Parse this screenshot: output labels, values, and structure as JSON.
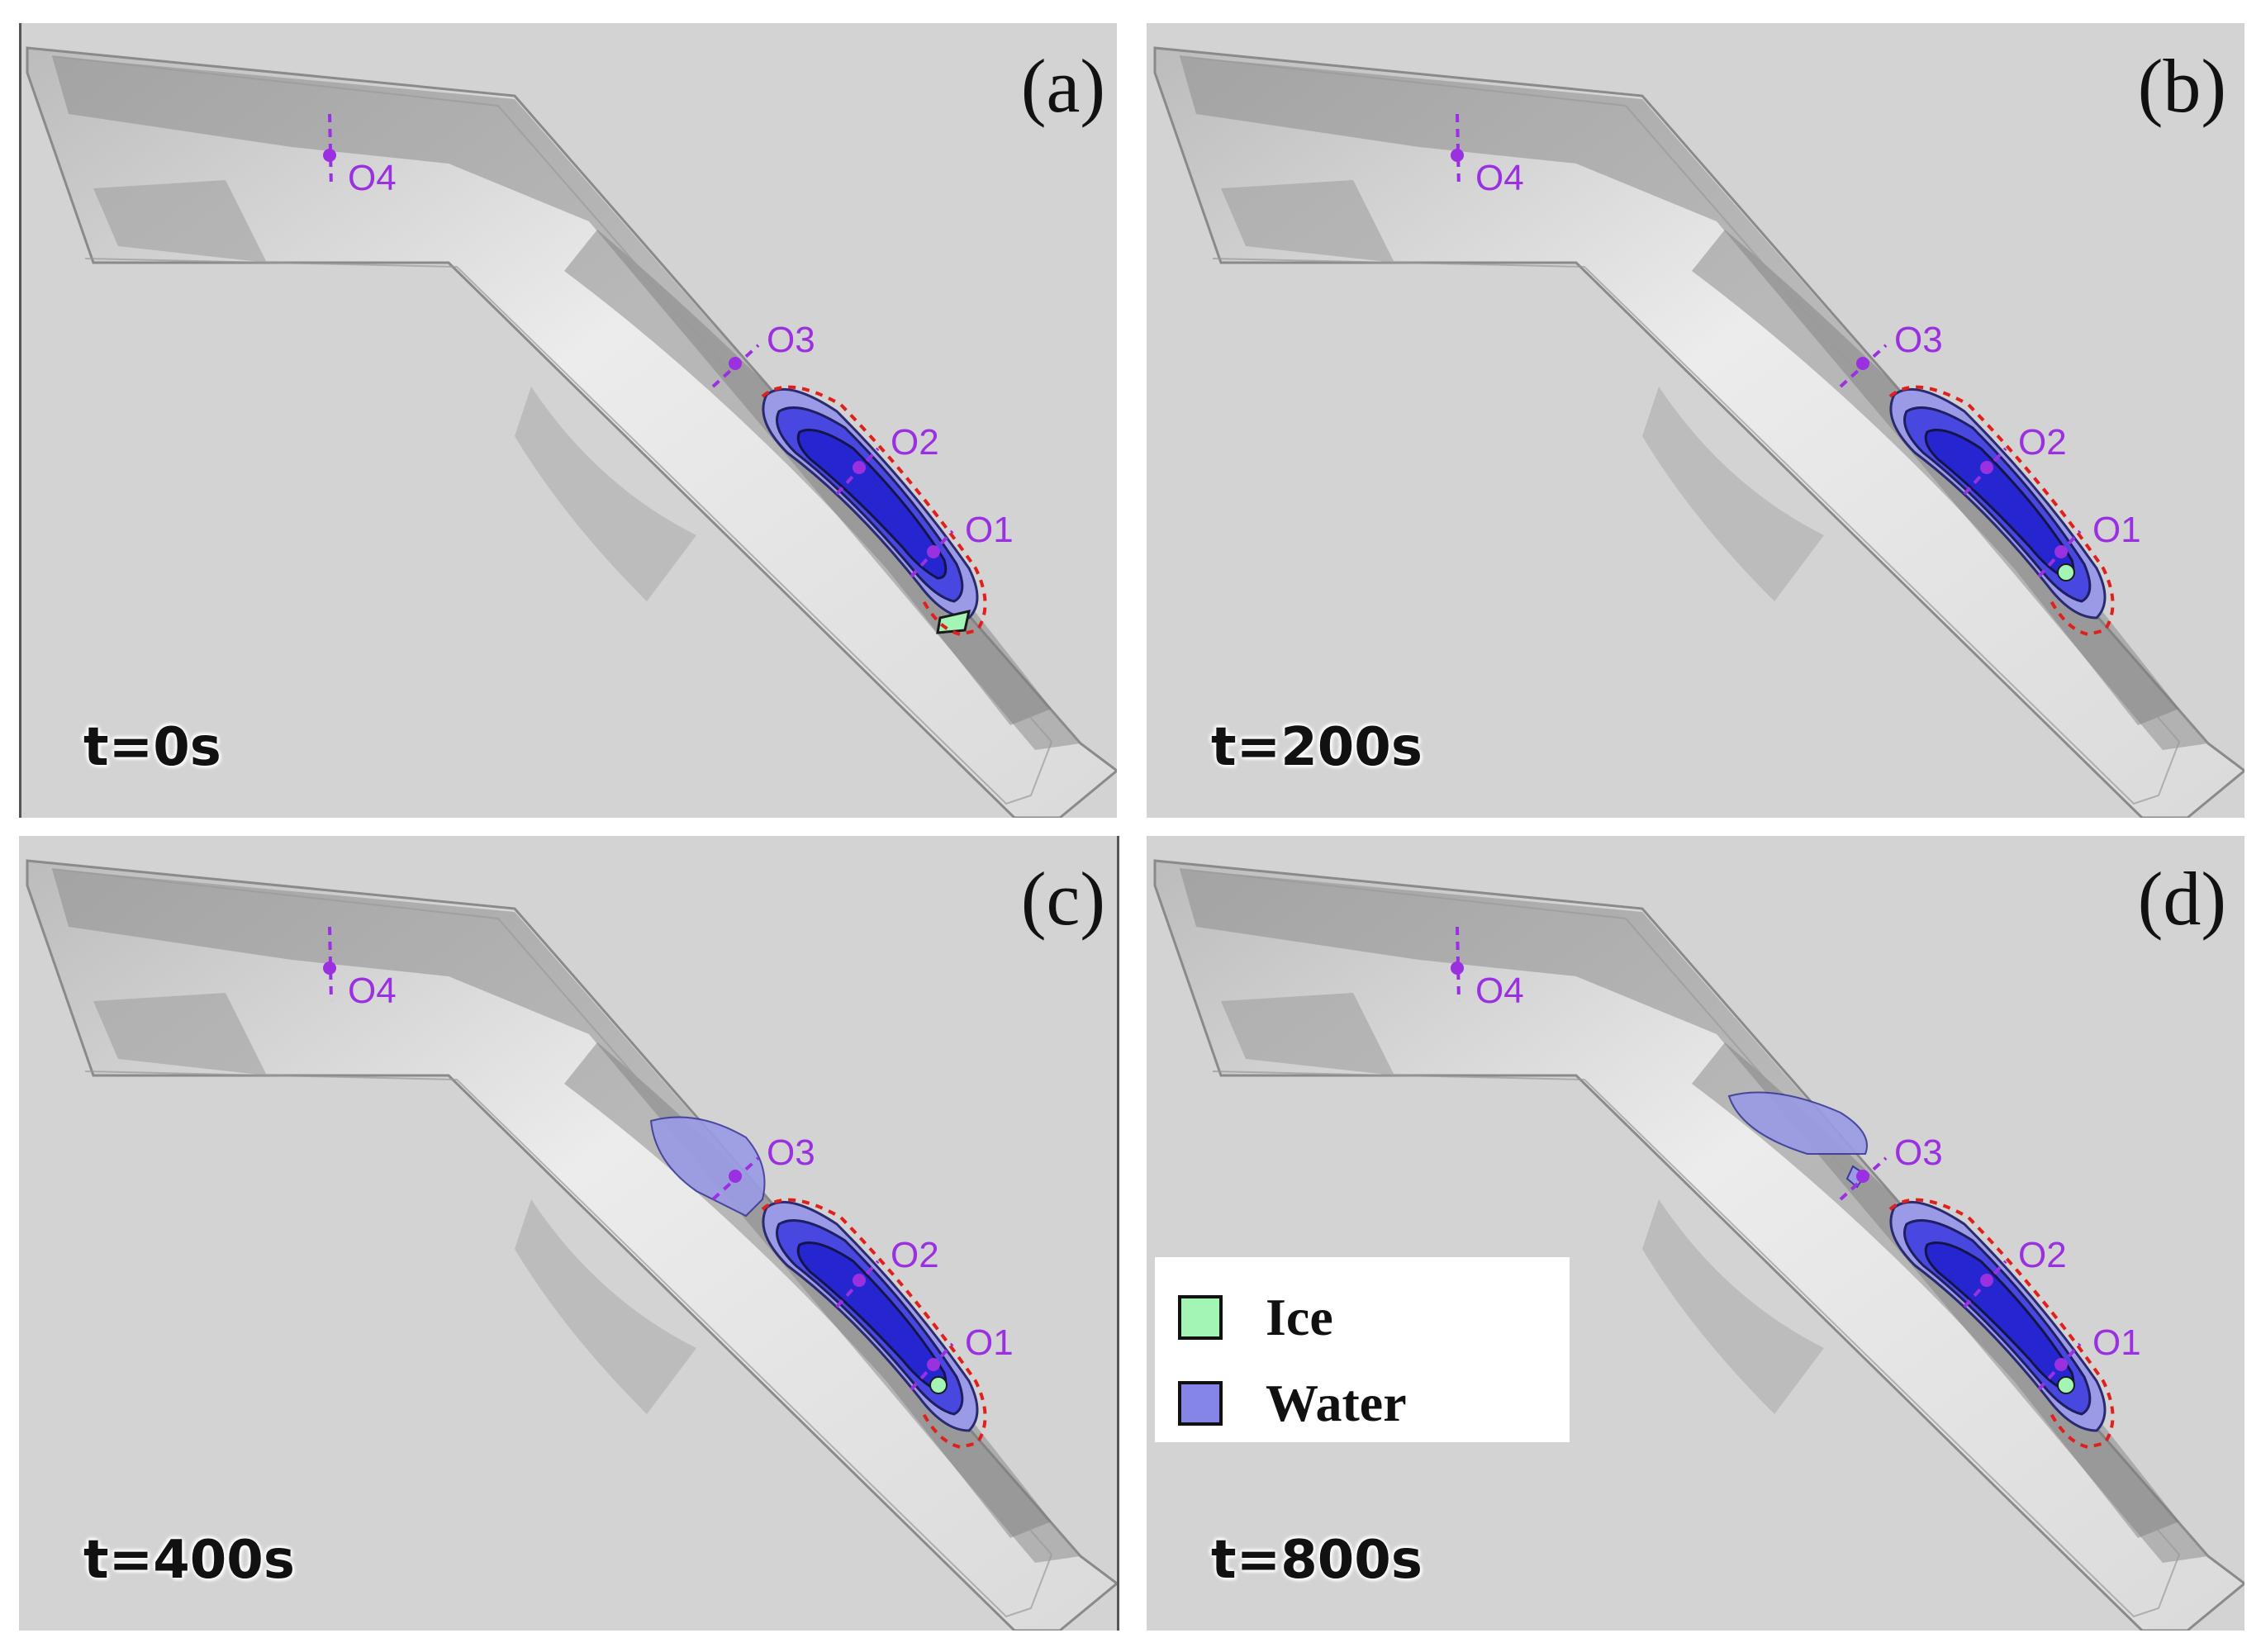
{
  "panels": [
    {
      "label": "(a)",
      "time": "t=0s"
    },
    {
      "label": "(b)",
      "time": "t=200s"
    },
    {
      "label": "(c)",
      "time": "t=400s"
    },
    {
      "label": "(d)",
      "time": "t=800s"
    }
  ],
  "observation_points": [
    "O1",
    "O2",
    "O3",
    "O4"
  ],
  "legend": {
    "items": [
      {
        "label": "Ice",
        "color": "#a2f5b4"
      },
      {
        "label": "Water",
        "color": "#8585e8"
      }
    ]
  },
  "colors": {
    "background": "#d3d3d3",
    "water_deep": "#2626d0",
    "water_mid": "#4848e0",
    "water_shallow": "#9a9ae6",
    "ice": "#a2f5b4",
    "observation": "#9b30e0",
    "boundary_dash": "#e0201c"
  }
}
